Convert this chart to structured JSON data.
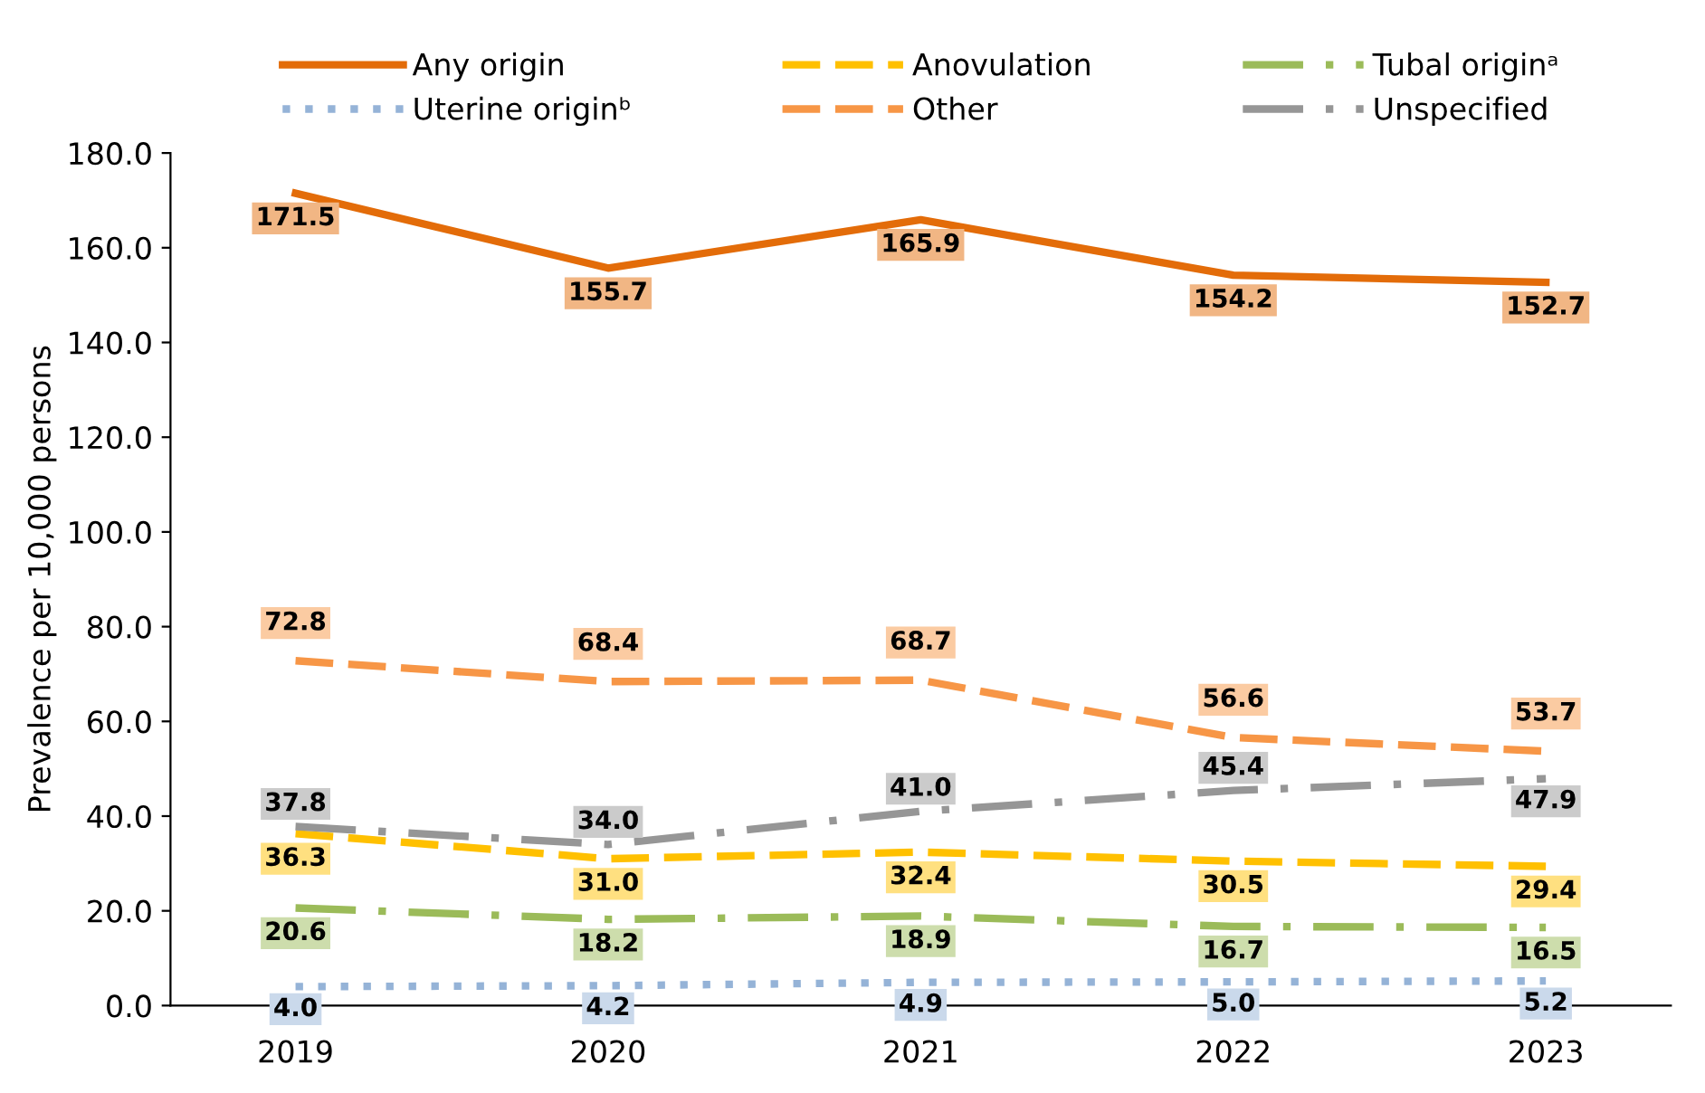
{
  "chart_data": {
    "type": "line",
    "ylabel": "Prevalence per 10,000 persons",
    "categories": [
      "2019",
      "2020",
      "2021",
      "2022",
      "2023"
    ],
    "series": [
      {
        "name": "Any origin",
        "color": "#e36c09",
        "line_style": "solid",
        "values": [
          171.5,
          155.7,
          165.9,
          154.2,
          152.7
        ],
        "value_labels": [
          "171.5",
          "155.7",
          "165.9",
          "154.2",
          "152.7"
        ]
      },
      {
        "name": "Anovulation",
        "color": "#ffc000",
        "line_style": "dashed",
        "values": [
          36.3,
          31.0,
          32.4,
          30.5,
          29.4
        ],
        "value_labels": [
          "36.3",
          "31.0",
          "32.4",
          "30.5",
          "29.4"
        ]
      },
      {
        "name": "Tubal originᵃ",
        "color": "#9bbb59",
        "line_style": "dashdot",
        "values": [
          20.6,
          18.2,
          18.9,
          16.7,
          16.5
        ],
        "value_labels": [
          "20.6",
          "18.2",
          "18.9",
          "16.7",
          "16.5"
        ]
      },
      {
        "name": "Uterine originᵇ",
        "color": "#95b3d7",
        "line_style": "dotted",
        "values": [
          4.0,
          4.2,
          4.9,
          5.0,
          5.2
        ],
        "value_labels": [
          "4.0",
          "4.2",
          "4.9",
          "5.0",
          "5.2"
        ]
      },
      {
        "name": "Other",
        "color": "#f79646",
        "line_style": "dashed",
        "values": [
          72.8,
          68.4,
          68.7,
          56.6,
          53.7
        ],
        "value_labels": [
          "72.8",
          "68.4",
          "68.7",
          "56.6",
          "53.7"
        ]
      },
      {
        "name": "Unspecified",
        "color": "#969696",
        "line_style": "dashdot",
        "values": [
          37.8,
          34.0,
          41.0,
          45.4,
          47.9
        ],
        "value_labels": [
          "37.8",
          "34.0",
          "41.0",
          "45.4",
          "47.9"
        ]
      }
    ],
    "marker": "none",
    "legend": "top",
    "grid": false,
    "ylim": [
      0,
      180
    ],
    "yticks": [
      {
        "value": 0,
        "label": "0.0"
      },
      {
        "value": 20,
        "label": "20.0"
      },
      {
        "value": 40,
        "label": "40.0"
      },
      {
        "value": 60,
        "label": "60.0"
      },
      {
        "value": 80,
        "label": "80.0"
      },
      {
        "value": 100,
        "label": "100.0"
      },
      {
        "value": 120,
        "label": "120.0"
      },
      {
        "value": 140,
        "label": "140.0"
      },
      {
        "value": 160,
        "label": "160.0"
      },
      {
        "value": 180,
        "label": "180.0"
      }
    ]
  }
}
